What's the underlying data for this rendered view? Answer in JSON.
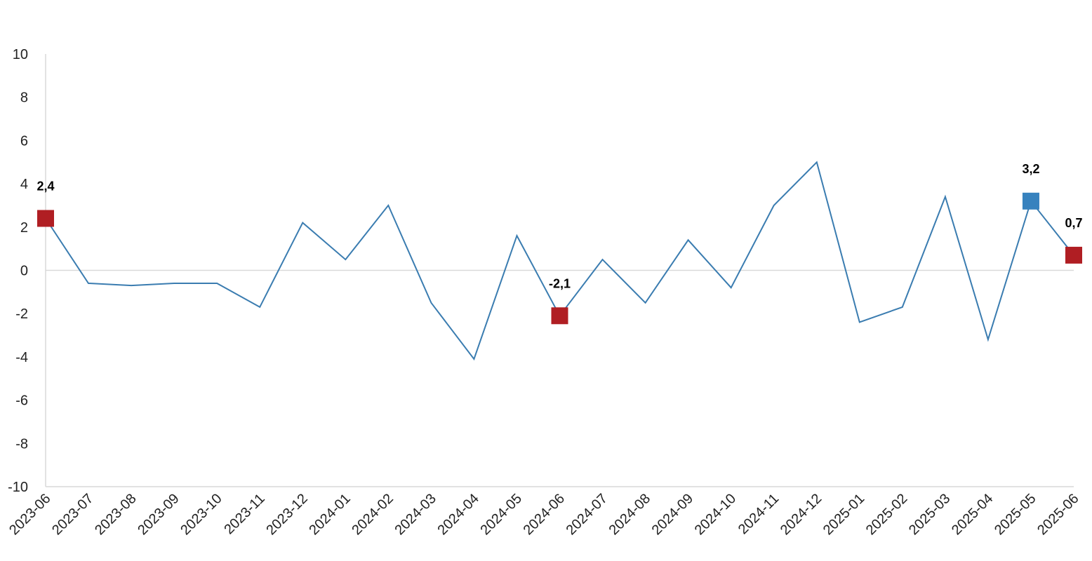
{
  "chart_data": {
    "type": "line",
    "title": "",
    "xlabel": "",
    "ylabel": "",
    "ylim": [
      -10,
      10
    ],
    "yticks": [
      10,
      8,
      6,
      4,
      2,
      0,
      -2,
      -4,
      -6,
      -8,
      -10
    ],
    "categories": [
      "2023-06",
      "2023-07",
      "2023-08",
      "2023-09",
      "2023-10",
      "2023-11",
      "2023-12",
      "2024-01",
      "2024-02",
      "2024-03",
      "2024-04",
      "2024-05",
      "2024-06",
      "2024-07",
      "2024-08",
      "2024-09",
      "2024-10",
      "2024-11",
      "2024-12",
      "2025-01",
      "2025-02",
      "2025-03",
      "2025-04",
      "2025-05",
      "2025-06"
    ],
    "series": [
      {
        "values": [
          2.4,
          -0.6,
          -0.7,
          -0.6,
          -0.6,
          -1.7,
          2.2,
          0.5,
          3.0,
          -1.5,
          -4.1,
          1.6,
          -2.1,
          0.5,
          -1.5,
          1.4,
          -0.8,
          3.0,
          5.0,
          -2.4,
          -1.7,
          3.4,
          -3.2,
          3.2,
          0.7
        ]
      }
    ],
    "grid": false,
    "zero_line": true,
    "line_color": "#3a7cb0",
    "highlighted_points": [
      {
        "category": "2023-06",
        "value": 2.4,
        "label": "2,4",
        "color": "#b01e23"
      },
      {
        "category": "2024-06",
        "value": -2.1,
        "label": "-2,1",
        "color": "#b01e23"
      },
      {
        "category": "2025-05",
        "value": 3.2,
        "label": "3,2",
        "color": "#3782be"
      },
      {
        "category": "2025-06",
        "value": 0.7,
        "label": "0,7",
        "color": "#b01e23"
      }
    ]
  }
}
